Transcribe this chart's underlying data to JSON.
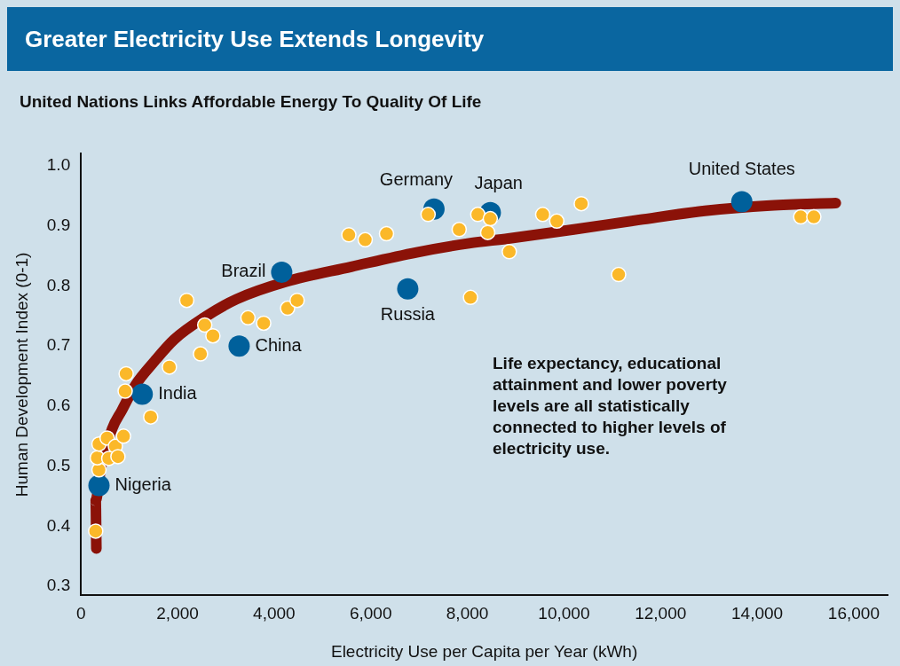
{
  "chart_data": {
    "type": "scatter",
    "title": "Greater Electricity Use Extends Longevity",
    "subtitle": "United Nations Links Affordable Energy To Quality Of Life",
    "xlabel": "Electricity Use per Capita per Year (kWh)",
    "ylabel": "Human Development Index (0-1)",
    "xlim": [
      0,
      16700
    ],
    "ylim": [
      0.285,
      1.02
    ],
    "xticks": [
      0,
      {
        "value": 2000,
        "label": "2,000"
      },
      {
        "value": 4000,
        "label": "4,000"
      },
      {
        "value": 6000,
        "label": "6,000"
      },
      {
        "value": 8000,
        "label": "8,000"
      },
      {
        "value": 10000,
        "label": "10,000"
      },
      {
        "value": 12000,
        "label": "12,000"
      },
      {
        "value": 14000,
        "label": "14,000"
      },
      {
        "value": 16000,
        "label": "16,000"
      }
    ],
    "yticks": [
      0.3,
      0.4,
      0.5,
      0.6,
      0.7,
      0.8,
      0.9,
      {
        "value": 1,
        "label": "1.0"
      }
    ],
    "grid": false,
    "legend": false,
    "marker": "circle",
    "series": [
      {
        "type": "line",
        "marker": "none",
        "color": "#8b1208",
        "x": [
          319,
          305,
          407,
          644,
          847,
          1119,
          1526,
          1932,
          2543,
          3221,
          4238,
          5594,
          6950,
          8034,
          8848,
          10204,
          11560,
          12916,
          14272,
          15628
        ],
        "values": [
          0.363,
          0.443,
          0.495,
          0.562,
          0.593,
          0.634,
          0.675,
          0.711,
          0.747,
          0.778,
          0.807,
          0.832,
          0.856,
          0.871,
          0.879,
          0.894,
          0.91,
          0.925,
          0.934,
          0.938
        ]
      },
      {
        "color": "#fbb829",
        "x": [
          305,
          373,
          339,
          373,
          542,
          712,
          576,
          766,
          881,
          915,
          936,
          1444,
          1831,
          2190,
          2475,
          2563,
          2732,
          3458,
          3783,
          4278,
          4475,
          5546,
          5885,
          6326,
          7187,
          7831,
          8065,
          8216,
          8475,
          8421,
          8868,
          9560,
          9851,
          10359,
          11132,
          14902,
          15173
        ],
        "values": [
          0.392,
          0.494,
          0.514,
          0.537,
          0.547,
          0.533,
          0.513,
          0.516,
          0.55,
          0.625,
          0.654,
          0.582,
          0.665,
          0.776,
          0.687,
          0.735,
          0.717,
          0.747,
          0.738,
          0.763,
          0.776,
          0.885,
          0.877,
          0.887,
          0.919,
          0.894,
          0.781,
          0.919,
          0.912,
          0.889,
          0.857,
          0.919,
          0.908,
          0.937,
          0.819,
          0.915,
          0.915
        ]
      },
      {
        "color": "#00609b",
        "x": [
          373,
          1268,
          3275,
          4156,
          6766,
          7309,
          8475,
          13682
        ],
        "values": [
          0.468,
          0.62,
          0.7,
          0.823,
          0.795,
          0.928,
          0.922,
          0.94
        ]
      }
    ],
    "annotations": [
      {
        "text": "Nigeria",
        "x": 373,
        "y": 0.468
      },
      {
        "text": "India",
        "x": 1268,
        "y": 0.62
      },
      {
        "text": "China",
        "x": 3275,
        "y": 0.7
      },
      {
        "text": "Brazil",
        "x": 4156,
        "y": 0.823
      },
      {
        "text": "Russia",
        "x": 6766,
        "y": 0.795
      },
      {
        "text": "Germany",
        "x": 7309,
        "y": 0.928
      },
      {
        "text": "Japan",
        "x": 8475,
        "y": 0.922
      },
      {
        "text": "United States",
        "x": 13682,
        "y": 0.94
      },
      "Life expectancy, educational attainment and lower poverty levels are all statistically connected to higher levels of electricity use."
    ]
  }
}
